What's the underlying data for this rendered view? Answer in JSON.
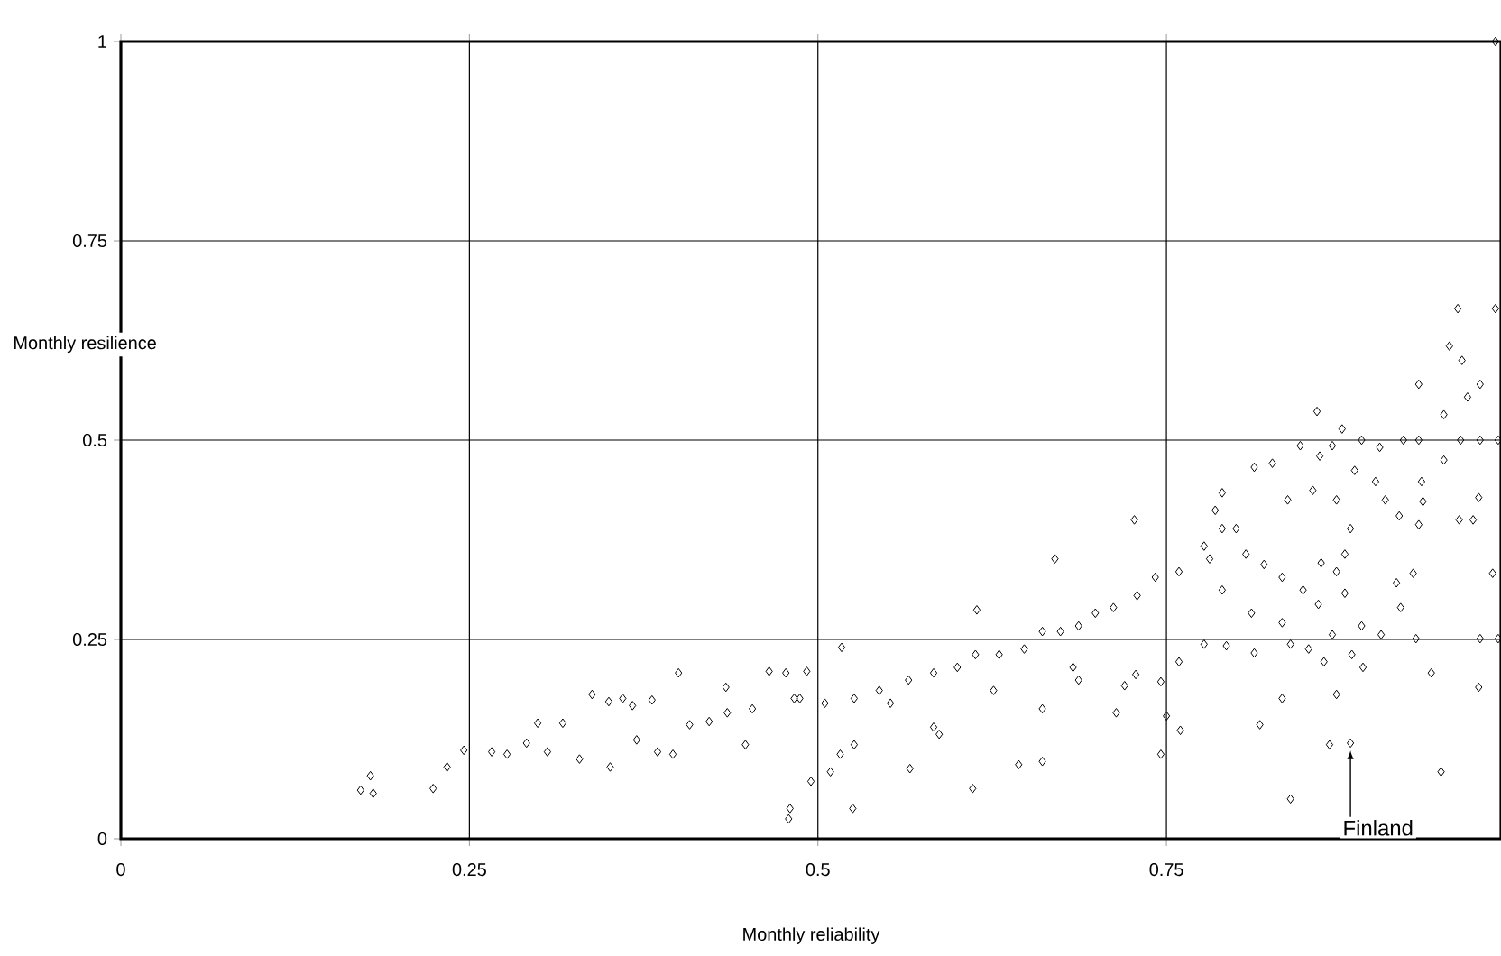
{
  "chart_data": {
    "type": "scatter",
    "xlabel": "Monthly reliability",
    "ylabel": "Monthly resilience",
    "xlim": [
      0,
      0.99
    ],
    "ylim": [
      0,
      1
    ],
    "xticks": [
      0,
      0.25,
      0.5,
      0.75
    ],
    "yticks": [
      0,
      0.25,
      0.5,
      0.75,
      1
    ],
    "grid": true,
    "marker": "diamond",
    "color": "#000000",
    "x": [
      0.172,
      0.179,
      0.181,
      0.224,
      0.234,
      0.246,
      0.266,
      0.277,
      0.291,
      0.299,
      0.306,
      0.317,
      0.329,
      0.338,
      0.35,
      0.351,
      0.36,
      0.367,
      0.37,
      0.381,
      0.385,
      0.396,
      0.4,
      0.408,
      0.422,
      0.434,
      0.435,
      0.448,
      0.453,
      0.465,
      0.477,
      0.479,
      0.48,
      0.483,
      0.487,
      0.492,
      0.505,
      0.526,
      0.544,
      0.565,
      0.583,
      0.6,
      0.613,
      0.63,
      0.648,
      0.661,
      0.674,
      0.687,
      0.699,
      0.712,
      0.729,
      0.742,
      0.759,
      0.777,
      0.79,
      0.517,
      0.495,
      0.509,
      0.516,
      0.526,
      0.525,
      0.566,
      0.587,
      0.611,
      0.614,
      0.644,
      0.661,
      0.67,
      0.661,
      0.714,
      0.72,
      0.727,
      0.728,
      0.746,
      0.75,
      0.746,
      0.76,
      0.79,
      0.759,
      0.777,
      0.687,
      0.683,
      0.626,
      0.552,
      0.583,
      0.959,
      0.986,
      0.953,
      0.962,
      0.931,
      0.975,
      0.966,
      0.949,
      0.858,
      0.876,
      0.846,
      0.869,
      0.89,
      0.903,
      0.92,
      0.931,
      0.961,
      0.975,
      0.988,
      0.949,
      0.813,
      0.826,
      0.86,
      0.885,
      0.9,
      0.933,
      0.934,
      0.974,
      0.96,
      0.97,
      0.917,
      0.931,
      0.907,
      0.872,
      0.855,
      0.837,
      0.984,
      0.927,
      0.915,
      0.918,
      0.878,
      0.882,
      0.861,
      0.872,
      0.878,
      0.859,
      0.848,
      0.833,
      0.82,
      0.807,
      0.8,
      0.785,
      0.781,
      0.79,
      0.811,
      0.833,
      0.869,
      0.89,
      0.904,
      0.929,
      0.975,
      0.988,
      0.863,
      0.852,
      0.883,
      0.891,
      0.839,
      0.813,
      0.793,
      0.833,
      0.872,
      0.94,
      0.974,
      0.817,
      0.867,
      0.882,
      0.839,
      0.947,
      0.986
    ],
    "values": [
      0.061,
      0.079,
      0.057,
      0.063,
      0.09,
      0.111,
      0.109,
      0.106,
      0.12,
      0.145,
      0.109,
      0.145,
      0.1,
      0.181,
      0.172,
      0.09,
      0.176,
      0.167,
      0.124,
      0.174,
      0.109,
      0.106,
      0.208,
      0.143,
      0.147,
      0.19,
      0.158,
      0.118,
      0.163,
      0.21,
      0.208,
      0.025,
      0.038,
      0.176,
      0.176,
      0.21,
      0.17,
      0.176,
      0.186,
      0.199,
      0.208,
      0.215,
      0.231,
      0.231,
      0.238,
      0.26,
      0.26,
      0.267,
      0.283,
      0.29,
      0.305,
      0.328,
      0.335,
      0.367,
      0.389,
      0.24,
      0.072,
      0.084,
      0.106,
      0.118,
      0.038,
      0.088,
      0.131,
      0.063,
      0.287,
      0.093,
      0.097,
      0.351,
      0.163,
      0.158,
      0.192,
      0.4,
      0.206,
      0.197,
      0.154,
      0.106,
      0.136,
      0.434,
      0.222,
      0.244,
      0.199,
      0.215,
      0.186,
      0.17,
      0.14,
      0.665,
      0.665,
      0.618,
      0.6,
      0.57,
      0.57,
      0.554,
      0.532,
      0.536,
      0.514,
      0.493,
      0.493,
      0.5,
      0.491,
      0.5,
      0.5,
      0.5,
      0.5,
      0.5,
      0.475,
      0.466,
      0.471,
      0.48,
      0.462,
      0.448,
      0.448,
      0.423,
      0.428,
      0.4,
      0.4,
      0.405,
      0.394,
      0.425,
      0.425,
      0.437,
      0.425,
      0.333,
      0.333,
      0.321,
      0.29,
      0.357,
      0.389,
      0.346,
      0.335,
      0.308,
      0.294,
      0.312,
      0.328,
      0.344,
      0.357,
      0.389,
      0.412,
      0.351,
      0.312,
      0.283,
      0.271,
      0.256,
      0.267,
      0.256,
      0.251,
      0.251,
      0.251,
      0.222,
      0.238,
      0.231,
      0.215,
      0.244,
      0.233,
      0.242,
      0.176,
      0.181,
      0.208,
      0.19,
      0.143,
      0.118,
      0.12,
      0.05,
      0.084,
      1.0
    ],
    "annotations": [
      {
        "text": "Finland",
        "x": 0.882,
        "y": 0.12
      }
    ]
  }
}
